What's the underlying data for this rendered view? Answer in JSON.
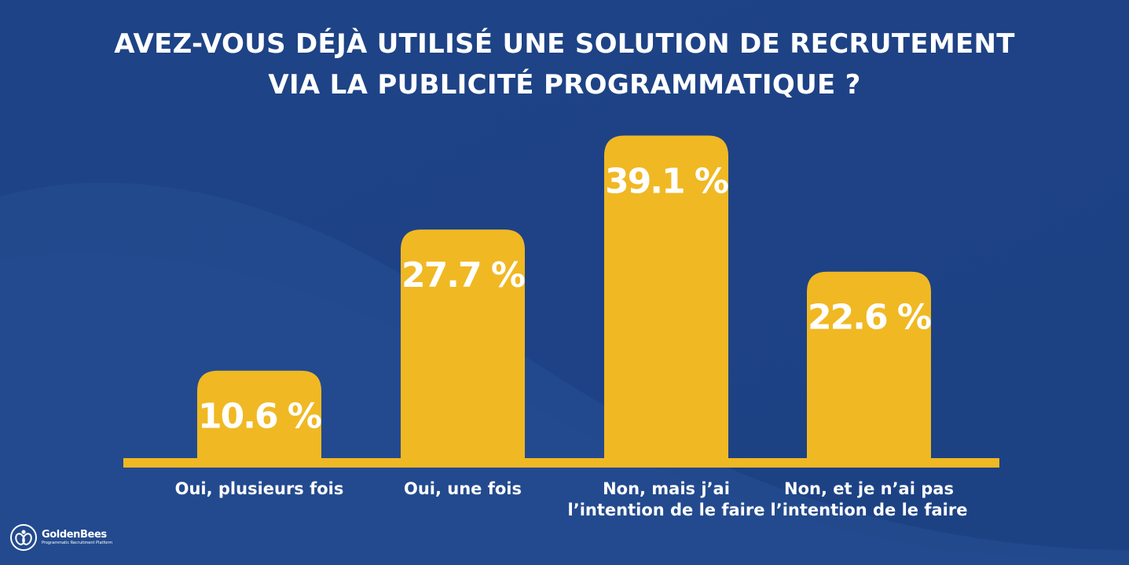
{
  "chart_data": {
    "type": "bar",
    "title": "AVEZ-VOUS DÉJÀ UTILISÉ UNE SOLUTION DE RECRUTEMENT VIA LA PUBLICITÉ PROGRAMMATIQUE ?",
    "title_lines": [
      "AVEZ-VOUS DÉJÀ UTILISÉ UNE SOLUTION DE RECRUTEMENT",
      "VIA LA PUBLICITÉ PROGRAMMATIQUE ?"
    ],
    "categories": [
      "Oui, plusieurs fois",
      "Oui, une fois",
      "Non, mais j’ai l’intention de le faire",
      "Non, et je n’ai pas l’intention de le faire"
    ],
    "category_lines": [
      [
        "Oui, plusieurs fois"
      ],
      [
        "Oui, une fois"
      ],
      [
        "Non, mais j’ai",
        "l’intention de le faire"
      ],
      [
        "Non, et je n’ai pas",
        "l’intention de le faire"
      ]
    ],
    "values": [
      10.6,
      27.7,
      39.1,
      22.6
    ],
    "value_labels": [
      "10.6 %",
      "27.7 %",
      "39.1 %",
      "22.6 %"
    ],
    "unit": "%",
    "xlabel": "",
    "ylabel": "",
    "grid": false,
    "legend": "none",
    "colors": {
      "background": "#1f4587",
      "bar": "#f0b823",
      "baseline": "#f0b823",
      "text": "#ffffff"
    }
  },
  "brand": {
    "name": "GoldenBees",
    "tagline": "Programmatic Recruitment Platform"
  }
}
